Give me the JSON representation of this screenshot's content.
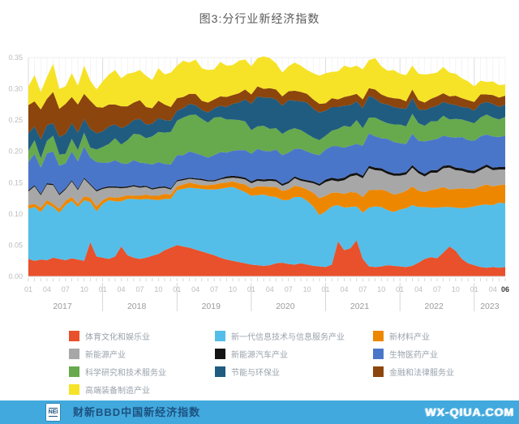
{
  "title": "图3:分行业新经济指数",
  "footer": {
    "logo_text": "NEI",
    "brand": "财新BBD中国新经济指数",
    "watermark": "WX-QIUA.COM",
    "bar_color": "#41a9dd",
    "brand_color": "#1c5180"
  },
  "chart_data": {
    "type": "area",
    "stacked": true,
    "title": "图3:分行业新经济指数",
    "xlabel": "",
    "ylabel": "",
    "ylim": [
      0,
      0.35
    ],
    "y_tick_step": 0.05,
    "grid": true,
    "legend_position": "bottom",
    "x_tick_months": [
      "01",
      "04",
      "07",
      "10"
    ],
    "last_x_label": "06",
    "x": [
      "2017-01",
      "2017-02",
      "2017-03",
      "2017-04",
      "2017-05",
      "2017-06",
      "2017-07",
      "2017-08",
      "2017-09",
      "2017-10",
      "2017-11",
      "2017-12",
      "2018-01",
      "2018-02",
      "2018-03",
      "2018-04",
      "2018-05",
      "2018-06",
      "2018-07",
      "2018-08",
      "2018-09",
      "2018-10",
      "2018-11",
      "2018-12",
      "2019-01",
      "2019-02",
      "2019-03",
      "2019-04",
      "2019-05",
      "2019-06",
      "2019-07",
      "2019-08",
      "2019-09",
      "2019-10",
      "2019-11",
      "2019-12",
      "2020-01",
      "2020-02",
      "2020-03",
      "2020-04",
      "2020-05",
      "2020-06",
      "2020-07",
      "2020-08",
      "2020-09",
      "2020-10",
      "2020-11",
      "2020-12",
      "2021-01",
      "2021-02",
      "2021-03",
      "2021-04",
      "2021-05",
      "2021-06",
      "2021-07",
      "2021-08",
      "2021-09",
      "2021-10",
      "2021-11",
      "2021-12",
      "2022-01",
      "2022-02",
      "2022-03",
      "2022-04",
      "2022-05",
      "2022-06",
      "2022-07",
      "2022-08",
      "2022-09",
      "2022-10",
      "2022-11",
      "2022-12",
      "2023-01",
      "2023-02",
      "2023-03",
      "2023-04",
      "2023-05",
      "2023-06"
    ],
    "years": [
      {
        "label": "2017",
        "start": 0,
        "end": 11
      },
      {
        "label": "2018",
        "start": 12,
        "end": 23
      },
      {
        "label": "2019",
        "start": 24,
        "end": 35
      },
      {
        "label": "2020",
        "start": 36,
        "end": 47
      },
      {
        "label": "2021",
        "start": 48,
        "end": 59
      },
      {
        "label": "2022",
        "start": 60,
        "end": 71
      },
      {
        "label": "2023",
        "start": 72,
        "end": 77
      }
    ],
    "series": [
      {
        "name": "体育文化和娱乐业",
        "color": "#e8512b",
        "values": [
          0.028,
          0.025,
          0.027,
          0.026,
          0.03,
          0.028,
          0.026,
          0.029,
          0.027,
          0.025,
          0.055,
          0.032,
          0.03,
          0.028,
          0.032,
          0.048,
          0.034,
          0.03,
          0.028,
          0.03,
          0.033,
          0.036,
          0.042,
          0.046,
          0.05,
          0.048,
          0.046,
          0.043,
          0.04,
          0.037,
          0.034,
          0.03,
          0.027,
          0.025,
          0.023,
          0.021,
          0.019,
          0.018,
          0.017,
          0.018,
          0.021,
          0.022,
          0.02,
          0.019,
          0.021,
          0.019,
          0.017,
          0.016,
          0.015,
          0.019,
          0.056,
          0.042,
          0.045,
          0.058,
          0.028,
          0.016,
          0.015,
          0.016,
          0.018,
          0.017,
          0.016,
          0.015,
          0.017,
          0.022,
          0.028,
          0.031,
          0.029,
          0.038,
          0.048,
          0.041,
          0.028,
          0.021,
          0.018,
          0.015,
          0.014,
          0.015,
          0.014,
          0.015
        ]
      },
      {
        "name": "新一代信息技术与信息服务产业",
        "color": "#54bee8",
        "values": [
          0.08,
          0.086,
          0.076,
          0.09,
          0.081,
          0.074,
          0.088,
          0.092,
          0.084,
          0.097,
          0.064,
          0.072,
          0.086,
          0.094,
          0.088,
          0.072,
          0.09,
          0.094,
          0.095,
          0.094,
          0.09,
          0.086,
          0.082,
          0.078,
          0.088,
          0.092,
          0.096,
          0.098,
          0.1,
          0.102,
          0.105,
          0.11,
          0.115,
          0.118,
          0.116,
          0.114,
          0.11,
          0.112,
          0.114,
          0.11,
          0.106,
          0.1,
          0.102,
          0.108,
          0.106,
          0.102,
          0.095,
          0.082,
          0.089,
          0.093,
          0.058,
          0.068,
          0.066,
          0.054,
          0.074,
          0.094,
          0.097,
          0.095,
          0.088,
          0.086,
          0.091,
          0.094,
          0.097,
          0.089,
          0.083,
          0.079,
          0.081,
          0.073,
          0.063,
          0.069,
          0.081,
          0.089,
          0.094,
          0.099,
          0.101,
          0.099,
          0.104,
          0.102
        ]
      },
      {
        "name": "新材料产业",
        "color": "#ee8700",
        "values": [
          0.006,
          0.005,
          0.007,
          0.006,
          0.005,
          0.006,
          0.007,
          0.006,
          0.005,
          0.006,
          0.007,
          0.008,
          0.006,
          0.005,
          0.006,
          0.007,
          0.006,
          0.005,
          0.006,
          0.007,
          0.006,
          0.007,
          0.008,
          0.007,
          0.006,
          0.007,
          0.008,
          0.007,
          0.006,
          0.007,
          0.008,
          0.009,
          0.008,
          0.009,
          0.01,
          0.012,
          0.012,
          0.014,
          0.013,
          0.015,
          0.016,
          0.015,
          0.017,
          0.018,
          0.016,
          0.018,
          0.022,
          0.027,
          0.025,
          0.022,
          0.02,
          0.022,
          0.024,
          0.022,
          0.025,
          0.028,
          0.026,
          0.028,
          0.03,
          0.028,
          0.026,
          0.028,
          0.03,
          0.026,
          0.024,
          0.028,
          0.03,
          0.032,
          0.028,
          0.03,
          0.032,
          0.03,
          0.028,
          0.03,
          0.032,
          0.03,
          0.028,
          0.03
        ]
      },
      {
        "name": "新能源产业",
        "color": "#a7a7a7",
        "values": [
          0.022,
          0.028,
          0.02,
          0.025,
          0.03,
          0.022,
          0.018,
          0.025,
          0.022,
          0.028,
          0.02,
          0.024,
          0.018,
          0.015,
          0.016,
          0.014,
          0.012,
          0.015,
          0.013,
          0.012,
          0.01,
          0.012,
          0.01,
          0.008,
          0.008,
          0.007,
          0.006,
          0.007,
          0.008,
          0.006,
          0.005,
          0.006,
          0.007,
          0.006,
          0.008,
          0.008,
          0.008,
          0.009,
          0.008,
          0.01,
          0.009,
          0.008,
          0.01,
          0.012,
          0.01,
          0.012,
          0.015,
          0.02,
          0.022,
          0.02,
          0.018,
          0.022,
          0.025,
          0.028,
          0.03,
          0.035,
          0.032,
          0.03,
          0.028,
          0.03,
          0.028,
          0.026,
          0.03,
          0.028,
          0.025,
          0.028,
          0.026,
          0.03,
          0.035,
          0.03,
          0.028,
          0.026,
          0.025,
          0.026,
          0.028,
          0.026,
          0.025,
          0.024
        ]
      },
      {
        "name": "新能源汽车产业",
        "color": "#141414",
        "values": [
          0.002,
          0.002,
          0.002,
          0.002,
          0.002,
          0.002,
          0.002,
          0.002,
          0.002,
          0.002,
          0.002,
          0.002,
          0.002,
          0.002,
          0.002,
          0.002,
          0.002,
          0.002,
          0.002,
          0.002,
          0.002,
          0.002,
          0.002,
          0.002,
          0.002,
          0.002,
          0.002,
          0.002,
          0.002,
          0.002,
          0.002,
          0.002,
          0.003,
          0.003,
          0.003,
          0.003,
          0.003,
          0.003,
          0.003,
          0.003,
          0.003,
          0.003,
          0.003,
          0.003,
          0.003,
          0.003,
          0.003,
          0.003,
          0.004,
          0.004,
          0.004,
          0.004,
          0.004,
          0.004,
          0.004,
          0.004,
          0.004,
          0.004,
          0.004,
          0.004,
          0.004,
          0.004,
          0.004,
          0.004,
          0.004,
          0.004,
          0.004,
          0.004,
          0.004,
          0.004,
          0.004,
          0.004,
          0.004,
          0.004,
          0.004,
          0.004,
          0.004,
          0.004
        ]
      },
      {
        "name": "生物医药产业",
        "color": "#4a76c9",
        "values": [
          0.045,
          0.05,
          0.042,
          0.048,
          0.052,
          0.045,
          0.04,
          0.046,
          0.044,
          0.05,
          0.042,
          0.045,
          0.04,
          0.038,
          0.042,
          0.038,
          0.036,
          0.04,
          0.038,
          0.036,
          0.038,
          0.04,
          0.036,
          0.038,
          0.04,
          0.038,
          0.042,
          0.04,
          0.038,
          0.036,
          0.04,
          0.042,
          0.038,
          0.04,
          0.042,
          0.044,
          0.044,
          0.048,
          0.046,
          0.044,
          0.048,
          0.046,
          0.046,
          0.044,
          0.048,
          0.046,
          0.044,
          0.046,
          0.048,
          0.05,
          0.052,
          0.048,
          0.045,
          0.046,
          0.048,
          0.052,
          0.05,
          0.048,
          0.052,
          0.05,
          0.048,
          0.045,
          0.05,
          0.048,
          0.052,
          0.048,
          0.05,
          0.048,
          0.045,
          0.048,
          0.05,
          0.048,
          0.048,
          0.05,
          0.048,
          0.05,
          0.048,
          0.05
        ]
      },
      {
        "name": "科学研究和技术服务业",
        "color": "#67a94d",
        "values": [
          0.018,
          0.022,
          0.015,
          0.02,
          0.025,
          0.018,
          0.015,
          0.02,
          0.018,
          0.022,
          0.016,
          0.02,
          0.025,
          0.03,
          0.035,
          0.03,
          0.038,
          0.042,
          0.045,
          0.04,
          0.045,
          0.048,
          0.05,
          0.052,
          0.055,
          0.06,
          0.058,
          0.062,
          0.058,
          0.056,
          0.06,
          0.056,
          0.053,
          0.05,
          0.048,
          0.046,
          0.038,
          0.036,
          0.04,
          0.036,
          0.034,
          0.034,
          0.036,
          0.033,
          0.03,
          0.028,
          0.026,
          0.024,
          0.022,
          0.025,
          0.028,
          0.035,
          0.03,
          0.038,
          0.028,
          0.025,
          0.03,
          0.028,
          0.025,
          0.028,
          0.03,
          0.028,
          0.032,
          0.028,
          0.025,
          0.03,
          0.028,
          0.032,
          0.028,
          0.03,
          0.028,
          0.03,
          0.028,
          0.03,
          0.032,
          0.03,
          0.028,
          0.03
        ]
      },
      {
        "name": "节能与环保业",
        "color": "#1f5c80",
        "values": [
          0.028,
          0.022,
          0.03,
          0.025,
          0.02,
          0.028,
          0.032,
          0.025,
          0.028,
          0.022,
          0.03,
          0.026,
          0.025,
          0.028,
          0.022,
          0.026,
          0.024,
          0.022,
          0.025,
          0.022,
          0.02,
          0.022,
          0.02,
          0.018,
          0.016,
          0.015,
          0.018,
          0.015,
          0.014,
          0.016,
          0.015,
          0.018,
          0.02,
          0.025,
          0.028,
          0.035,
          0.042,
          0.048,
          0.045,
          0.05,
          0.046,
          0.045,
          0.048,
          0.044,
          0.046,
          0.05,
          0.046,
          0.044,
          0.04,
          0.038,
          0.035,
          0.032,
          0.035,
          0.03,
          0.032,
          0.035,
          0.03,
          0.028,
          0.03,
          0.028,
          0.026,
          0.028,
          0.025,
          0.022,
          0.025,
          0.022,
          0.025,
          0.022,
          0.025,
          0.022,
          0.02,
          0.022,
          0.02,
          0.022,
          0.02,
          0.022,
          0.02,
          0.02
        ]
      },
      {
        "name": "金融和法律服务业",
        "color": "#8c450d",
        "values": [
          0.045,
          0.04,
          0.048,
          0.042,
          0.05,
          0.045,
          0.048,
          0.042,
          0.045,
          0.04,
          0.045,
          0.042,
          0.038,
          0.035,
          0.032,
          0.035,
          0.03,
          0.028,
          0.03,
          0.028,
          0.025,
          0.028,
          0.025,
          0.022,
          0.02,
          0.018,
          0.016,
          0.018,
          0.015,
          0.016,
          0.014,
          0.015,
          0.016,
          0.014,
          0.015,
          0.016,
          0.015,
          0.016,
          0.014,
          0.015,
          0.016,
          0.015,
          0.014,
          0.016,
          0.015,
          0.014,
          0.015,
          0.014,
          0.012,
          0.014,
          0.012,
          0.014,
          0.015,
          0.012,
          0.014,
          0.012,
          0.015,
          0.014,
          0.012,
          0.014,
          0.015,
          0.012,
          0.014,
          0.015,
          0.012,
          0.014,
          0.015,
          0.014,
          0.012,
          0.015,
          0.014,
          0.012,
          0.014,
          0.015,
          0.012,
          0.014,
          0.015,
          0.014
        ]
      },
      {
        "name": "高端装备制造产业",
        "color": "#f6e327",
        "values": [
          0.03,
          0.042,
          0.028,
          0.035,
          0.045,
          0.032,
          0.028,
          0.038,
          0.03,
          0.045,
          0.032,
          0.028,
          0.042,
          0.048,
          0.055,
          0.045,
          0.052,
          0.048,
          0.048,
          0.05,
          0.045,
          0.052,
          0.048,
          0.055,
          0.052,
          0.058,
          0.05,
          0.055,
          0.052,
          0.052,
          0.048,
          0.055,
          0.05,
          0.048,
          0.052,
          0.048,
          0.045,
          0.045,
          0.052,
          0.048,
          0.042,
          0.038,
          0.04,
          0.045,
          0.042,
          0.038,
          0.042,
          0.045,
          0.048,
          0.042,
          0.045,
          0.05,
          0.045,
          0.045,
          0.048,
          0.045,
          0.05,
          0.045,
          0.042,
          0.045,
          0.04,
          0.042,
          0.038,
          0.042,
          0.045,
          0.04,
          0.038,
          0.042,
          0.038,
          0.035,
          0.032,
          0.03,
          0.025,
          0.022,
          0.02,
          0.022,
          0.02,
          0.018
        ]
      }
    ]
  }
}
